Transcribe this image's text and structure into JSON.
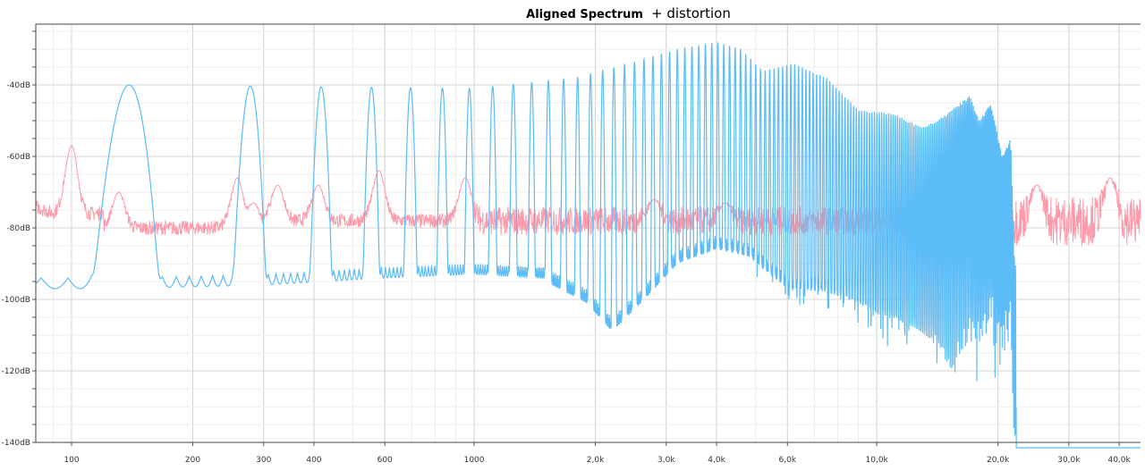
{
  "chart_data": {
    "type": "line",
    "title": "Aligned Spectrum",
    "subtitle": "+ distortion",
    "xscale": "log",
    "xlim": [
      81.5,
      45200
    ],
    "ylim": [
      -140,
      -23
    ],
    "grid": true,
    "x_ticks": [
      {
        "v": 100,
        "label": "100"
      },
      {
        "v": 200,
        "label": "200"
      },
      {
        "v": 300,
        "label": "300"
      },
      {
        "v": 400,
        "label": "400"
      },
      {
        "v": 600,
        "label": "600"
      },
      {
        "v": 1000,
        "label": "1000"
      },
      {
        "v": 2000,
        "label": "2,0k"
      },
      {
        "v": 3000,
        "label": "3,0k"
      },
      {
        "v": 4000,
        "label": "4,0k"
      },
      {
        "v": 6000,
        "label": "6,0k"
      },
      {
        "v": 10000,
        "label": "10,0k"
      },
      {
        "v": 20000,
        "label": "20,0k"
      },
      {
        "v": 30000,
        "label": "30,0k"
      },
      {
        "v": 40000,
        "label": "40,0k"
      }
    ],
    "y_ticks": [
      {
        "v": -40,
        "label": "-40dB"
      },
      {
        "v": -60,
        "label": "-60dB"
      },
      {
        "v": -80,
        "label": "-80dB"
      },
      {
        "v": -100,
        "label": "-100dB"
      },
      {
        "v": -120,
        "label": "-120dB"
      },
      {
        "v": -140,
        "label": "-140dB"
      }
    ],
    "series": [
      {
        "color": "#5bbcf7",
        "harmonic_spacing_hz": 139,
        "peak_envelope": [
          [
            140,
            -40
          ],
          [
            1000,
            -41
          ],
          [
            1800,
            -38
          ],
          [
            2600,
            -33
          ],
          [
            3200,
            -30
          ],
          [
            4000,
            -28
          ],
          [
            4600,
            -30
          ],
          [
            5200,
            -36
          ],
          [
            6200,
            -34
          ],
          [
            7500,
            -38
          ],
          [
            9000,
            -47
          ],
          [
            11000,
            -48
          ],
          [
            13000,
            -52
          ],
          [
            15000,
            -48
          ],
          [
            17000,
            -43
          ],
          [
            18000,
            -50
          ],
          [
            19200,
            -45
          ],
          [
            20500,
            -60
          ],
          [
            21500,
            -55
          ],
          [
            22000,
            -90
          ]
        ],
        "floor": [
          [
            81.5,
            -94
          ],
          [
            130,
            -94
          ],
          [
            300,
            -93
          ],
          [
            600,
            -91
          ],
          [
            1000,
            -90
          ],
          [
            1500,
            -91
          ],
          [
            1900,
            -97
          ],
          [
            2200,
            -105
          ],
          [
            2600,
            -97
          ],
          [
            3200,
            -86
          ],
          [
            4000,
            -82
          ],
          [
            4800,
            -84
          ],
          [
            6000,
            -93
          ],
          [
            7500,
            -94
          ],
          [
            9000,
            -97
          ],
          [
            10000,
            -100
          ],
          [
            12000,
            -103
          ],
          [
            14000,
            -108
          ],
          [
            15500,
            -118
          ],
          [
            17000,
            -110
          ],
          [
            19000,
            -110
          ],
          [
            21000,
            -120
          ],
          [
            22500,
            -150
          ]
        ]
      },
      {
        "color": "#ff9aaa",
        "base_level": -78,
        "peaks": [
          [
            100,
            -57
          ],
          [
            131,
            -70
          ],
          [
            258,
            -66
          ],
          [
            325,
            -68
          ],
          [
            283,
            -73
          ],
          [
            410,
            -68
          ],
          [
            580,
            -64
          ],
          [
            950,
            -66
          ],
          [
            2800,
            -72
          ],
          [
            4200,
            -73
          ],
          [
            25000,
            -68
          ],
          [
            38000,
            -66
          ]
        ],
        "start_level": [
          [
            81.5,
            -71
          ],
          [
            90,
            -73
          ]
        ]
      }
    ]
  }
}
